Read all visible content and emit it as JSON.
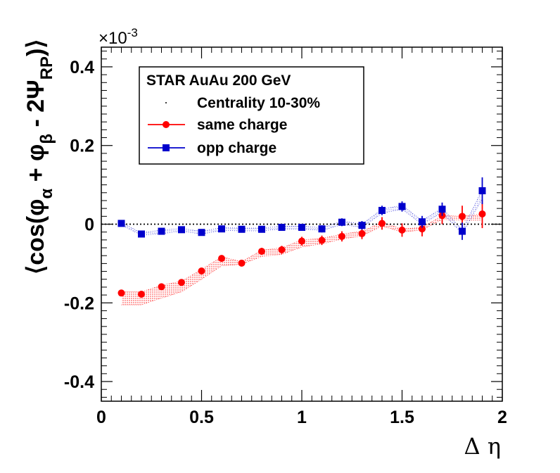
{
  "chart_data": {
    "type": "scatter",
    "title": "",
    "xlabel": "Δ η",
    "ylabel_parts": {
      "open": "⟨cos(φ",
      "sub_alpha": "α",
      "plus": " + φ",
      "sub_beta": "β",
      "minus": " - 2Ψ",
      "sub_rp": "RP",
      "close": ")⟩"
    },
    "exponent_label": "×10",
    "exponent_power": "-3",
    "xlim": [
      0,
      2
    ],
    "ylim": [
      -0.45,
      0.45
    ],
    "x_ticks": [
      0,
      0.5,
      1,
      1.5,
      2
    ],
    "x_tick_labels": [
      "0",
      "0.5",
      "1",
      "1.5",
      "2"
    ],
    "y_ticks": [
      0.4,
      0.2,
      0,
      -0.2,
      -0.4
    ],
    "y_tick_labels": [
      "0.4",
      "0.2",
      "0",
      "-0.2",
      "-0.4"
    ],
    "reference_line_y": 0,
    "legend": {
      "position": "top-left",
      "header": "STAR AuAu 200 GeV",
      "subheader": "Centrality 10-30%"
    },
    "series": [
      {
        "name": "same charge",
        "color": "#ff0000",
        "marker": "circle",
        "x": [
          0.1,
          0.2,
          0.3,
          0.4,
          0.5,
          0.6,
          0.7,
          0.8,
          0.9,
          1.0,
          1.1,
          1.2,
          1.3,
          1.4,
          1.5,
          1.6,
          1.7,
          1.8,
          1.9
        ],
        "y": [
          -0.175,
          -0.178,
          -0.159,
          -0.148,
          -0.119,
          -0.087,
          -0.099,
          -0.069,
          -0.065,
          -0.043,
          -0.041,
          -0.031,
          -0.024,
          0.002,
          -0.015,
          -0.012,
          0.022,
          0.02,
          0.026
        ],
        "err": [
          0.005,
          0.005,
          0.005,
          0.005,
          0.006,
          0.007,
          0.008,
          0.009,
          0.01,
          0.011,
          0.012,
          0.013,
          0.014,
          0.016,
          0.017,
          0.019,
          0.022,
          0.027,
          0.036
        ],
        "band_low": [
          -0.205,
          -0.205,
          -0.188,
          -0.172,
          -0.14,
          -0.106,
          -0.102,
          -0.082,
          -0.077,
          -0.058,
          -0.05,
          -0.038,
          -0.03,
          -0.005,
          -0.02,
          -0.015,
          0.012,
          0.01,
          0.01
        ],
        "band_high": [
          -0.172,
          -0.172,
          -0.155,
          -0.145,
          -0.115,
          -0.083,
          -0.095,
          -0.066,
          -0.06,
          -0.04,
          -0.036,
          -0.025,
          -0.018,
          0.005,
          -0.012,
          -0.008,
          0.022,
          0.02,
          0.026
        ]
      },
      {
        "name": "opp charge",
        "color": "#0000cc",
        "marker": "square",
        "x": [
          0.1,
          0.2,
          0.3,
          0.4,
          0.5,
          0.6,
          0.7,
          0.8,
          0.9,
          1.0,
          1.1,
          1.2,
          1.3,
          1.4,
          1.5,
          1.6,
          1.7,
          1.8,
          1.9
        ],
        "y": [
          0.002,
          -0.025,
          -0.018,
          -0.014,
          -0.021,
          -0.012,
          -0.013,
          -0.013,
          -0.008,
          -0.008,
          -0.012,
          0.005,
          -0.003,
          0.035,
          0.045,
          0.006,
          0.038,
          -0.018,
          0.085
        ],
        "err": [
          0.004,
          0.004,
          0.004,
          0.004,
          0.005,
          0.005,
          0.006,
          0.006,
          0.007,
          0.008,
          0.009,
          0.01,
          0.011,
          0.012,
          0.013,
          0.015,
          0.017,
          0.022,
          0.034
        ],
        "band_low": [
          -0.002,
          -0.028,
          -0.024,
          -0.018,
          -0.025,
          -0.016,
          -0.017,
          -0.017,
          -0.012,
          -0.012,
          -0.016,
          -0.001,
          -0.008,
          0.028,
          0.038,
          0.0,
          0.03,
          -0.024,
          0.065
        ],
        "band_high": [
          0.004,
          -0.022,
          -0.015,
          -0.011,
          -0.018,
          -0.009,
          -0.01,
          -0.01,
          -0.005,
          -0.005,
          -0.009,
          0.008,
          0.0,
          0.038,
          0.048,
          0.009,
          0.041,
          -0.015,
          0.088
        ]
      }
    ]
  }
}
